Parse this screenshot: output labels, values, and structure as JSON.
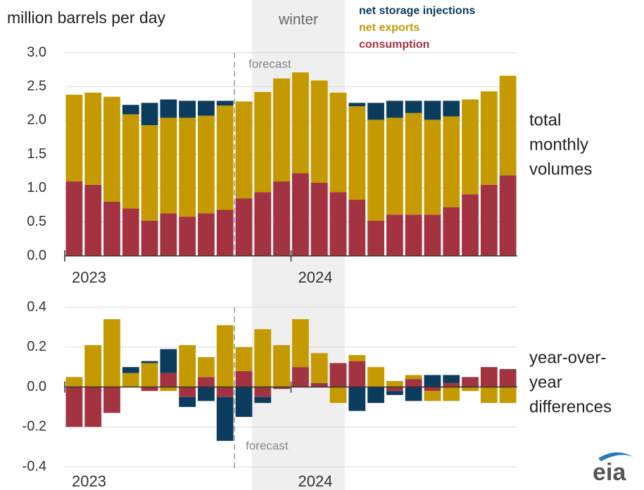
{
  "chart_data": [
    {
      "type": "stacked_bar",
      "title": "million barrels per day",
      "shading_label": "winter",
      "forecast_label": "forecast",
      "annotation": [
        "total",
        "monthly",
        "volumes"
      ],
      "categories": [
        "2023",
        null,
        null,
        null,
        null,
        null,
        null,
        null,
        null,
        null,
        null,
        null,
        "2024",
        null,
        null,
        null,
        null,
        null,
        null,
        null,
        null,
        null,
        null,
        null
      ],
      "series": [
        {
          "name": "consumption",
          "color": "#a33340",
          "values": [
            1.1,
            1.05,
            0.8,
            0.7,
            0.52,
            0.63,
            0.58,
            0.63,
            0.68,
            0.85,
            0.94,
            1.1,
            1.22,
            1.08,
            0.94,
            0.83,
            0.52,
            0.61,
            0.61,
            0.61,
            0.72,
            0.91,
            1.05,
            1.19
          ]
        },
        {
          "name": "net exports",
          "color": "#c49a00",
          "values": [
            1.28,
            1.36,
            1.55,
            1.39,
            1.41,
            1.41,
            1.46,
            1.44,
            1.54,
            1.43,
            1.48,
            1.52,
            1.49,
            1.51,
            1.47,
            1.38,
            1.49,
            1.43,
            1.5,
            1.4,
            1.34,
            1.4,
            1.38,
            1.47
          ]
        },
        {
          "name": "net storage injections",
          "color": "#0b3c5d",
          "values": [
            0,
            0,
            0,
            0.14,
            0.33,
            0.27,
            0.25,
            0.22,
            0.07,
            0,
            0,
            0,
            0,
            0,
            0,
            0.05,
            0.25,
            0.25,
            0.18,
            0.28,
            0.23,
            0,
            0,
            0
          ]
        }
      ],
      "ylim": [
        0,
        3
      ],
      "yticks": [
        {
          "value": 0,
          "label": "0.0"
        },
        0.5,
        {
          "value": 1,
          "label": "1.0"
        },
        1.5,
        {
          "value": 2,
          "label": "2.0"
        },
        2.5,
        {
          "value": 3,
          "label": "3.0"
        }
      ],
      "grid": true
    },
    {
      "type": "stacked_bar",
      "forecast_label": "forecast",
      "annotation": [
        "year-over-",
        "year",
        "differences"
      ],
      "categories": [
        "2023",
        null,
        null,
        null,
        null,
        null,
        null,
        null,
        null,
        null,
        null,
        null,
        "2024",
        null,
        null,
        null,
        null,
        null,
        null,
        null,
        null,
        null,
        null,
        null
      ],
      "series": [
        {
          "color": "#a33340",
          "values": [
            -0.2,
            -0.2,
            -0.13,
            0,
            -0.02,
            0.07,
            -0.05,
            0.05,
            -0.05,
            0.08,
            -0.05,
            -0.01,
            0.1,
            0.02,
            0.12,
            0.13,
            0,
            -0.02,
            0.04,
            -0.02,
            0.02,
            0.05,
            0.1,
            0.09
          ]
        },
        {
          "color": "#c49a00",
          "values": [
            0.05,
            0.21,
            0.34,
            0.07,
            0.12,
            -0.02,
            0.21,
            0.1,
            0.31,
            0.12,
            0.29,
            0.21,
            0.24,
            0.15,
            -0.08,
            0.03,
            0.1,
            0.03,
            0.02,
            -0.05,
            -0.07,
            -0.02,
            -0.08,
            -0.08
          ]
        },
        {
          "color": "#0b3c5d",
          "values": [
            0,
            0,
            0,
            0.03,
            0.01,
            0.12,
            -0.05,
            -0.07,
            -0.22,
            -0.15,
            -0.03,
            0,
            0,
            0,
            0,
            -0.12,
            -0.08,
            -0.02,
            -0.07,
            0.06,
            0.04,
            0,
            0,
            0
          ]
        }
      ],
      "ylim": [
        -0.4,
        0.4
      ],
      "yticks": [
        -0.4,
        -0.2,
        {
          "value": 0,
          "label": "0.0"
        },
        0.2,
        0.4
      ],
      "grid": true
    }
  ]
}
